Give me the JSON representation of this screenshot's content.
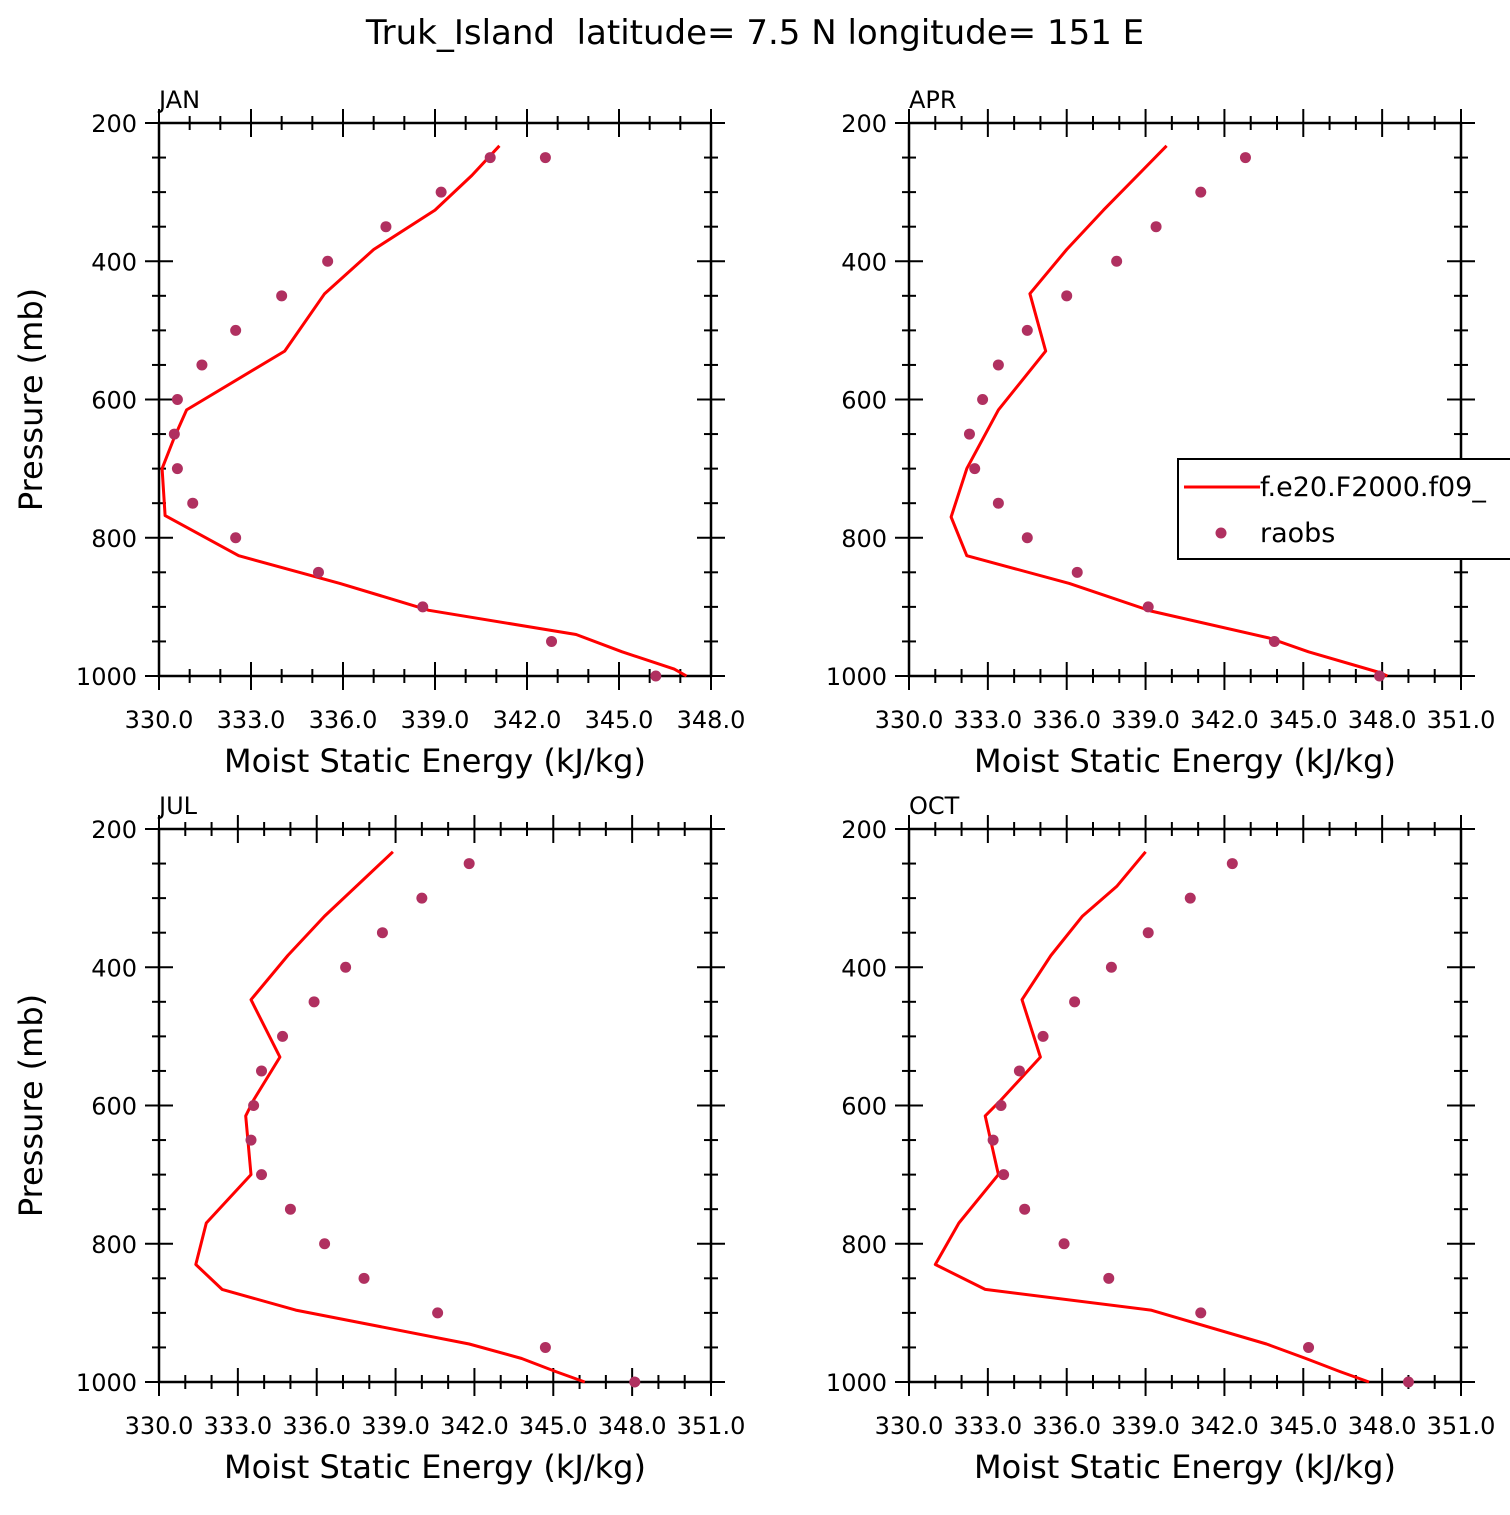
{
  "title": "Truk_Island  latitude= 7.5 N longitude= 151 E",
  "colors": {
    "model": "#ff0000",
    "obs": "#b03060",
    "frame": "#000000"
  },
  "legend": {
    "model_label": "f.e20.F2000.f09_",
    "obs_label": "raobs"
  },
  "chart_data": [
    {
      "type": "line",
      "panel": "JAN",
      "xlabel": "Moist Static Energy (kJ/kg)",
      "ylabel": "Pressure (mb)",
      "xlim": [
        330.0,
        348.0
      ],
      "ylim": [
        1000,
        200
      ],
      "xticks": [
        330.0,
        333.0,
        336.0,
        339.0,
        342.0,
        345.0,
        348.0
      ],
      "xtick_labels": [
        "330.0",
        "333.0",
        "336.0",
        "339.0",
        "342.0",
        "345.0",
        "348.0"
      ],
      "yticks": [
        200,
        400,
        600,
        800,
        1000
      ],
      "ytick_labels": [
        "200",
        "400",
        "600",
        "800",
        "1000"
      ],
      "series": [
        {
          "name": "f.e20.F2000.f09_",
          "style": "line",
          "x": [
            347.2,
            346.8,
            345.1,
            343.6,
            338.8,
            335.9,
            332.6,
            330.2,
            330.1,
            330.5,
            330.9,
            334.1,
            335.4,
            337.0,
            339.0,
            340.2,
            341.1
          ],
          "y": [
            1000,
            990,
            965,
            940,
            905,
            866,
            826,
            768,
            700,
            655,
            615,
            530,
            447,
            383,
            326,
            276,
            233
          ]
        },
        {
          "name": "raobs",
          "style": "points",
          "x": [
            346.2,
            342.8,
            338.6,
            335.2,
            332.5,
            331.1,
            330.6,
            330.5,
            330.6,
            331.4,
            332.5,
            334.0,
            335.5,
            337.4,
            339.2,
            340.8,
            342.6
          ],
          "y": [
            1000,
            950,
            900,
            850,
            800,
            750,
            700,
            650,
            600,
            550,
            500,
            450,
            400,
            350,
            300,
            250,
            250
          ]
        }
      ]
    },
    {
      "type": "line",
      "panel": "APR",
      "xlabel": "Moist Static Energy (kJ/kg)",
      "ylabel": "",
      "xlim": [
        330.0,
        351.0
      ],
      "ylim": [
        1000,
        200
      ],
      "xticks": [
        330.0,
        333.0,
        336.0,
        339.0,
        342.0,
        345.0,
        348.0,
        351.0
      ],
      "xtick_labels": [
        "330.0",
        "333.0",
        "336.0",
        "339.0",
        "342.0",
        "345.0",
        "348.0",
        "351.0"
      ],
      "yticks": [
        200,
        400,
        600,
        800,
        1000
      ],
      "ytick_labels": [
        "200",
        "400",
        "600",
        "800",
        "1000"
      ],
      "series": [
        {
          "name": "f.e20.F2000.f09_",
          "style": "line",
          "x": [
            348.2,
            347.9,
            345.2,
            343.7,
            339.2,
            336.1,
            332.2,
            331.6,
            332.2,
            333.4,
            335.2,
            334.6,
            336.0,
            337.4,
            339.8
          ],
          "y": [
            1000,
            995,
            965,
            945,
            906,
            866,
            826,
            770,
            700,
            615,
            530,
            447,
            383,
            326,
            233
          ]
        },
        {
          "name": "raobs",
          "style": "points",
          "x": [
            347.9,
            343.9,
            339.1,
            336.4,
            334.5,
            333.4,
            332.5,
            332.3,
            332.8,
            333.4,
            334.5,
            336.0,
            337.9,
            339.4,
            341.1,
            342.8
          ],
          "y": [
            1000,
            950,
            900,
            850,
            800,
            750,
            700,
            650,
            600,
            550,
            500,
            450,
            400,
            350,
            300,
            250
          ]
        }
      ]
    },
    {
      "type": "line",
      "panel": "JUL",
      "xlabel": "Moist Static Energy (kJ/kg)",
      "ylabel": "Pressure (mb)",
      "xlim": [
        330.0,
        351.0
      ],
      "ylim": [
        1000,
        200
      ],
      "xticks": [
        330.0,
        333.0,
        336.0,
        339.0,
        342.0,
        345.0,
        348.0,
        351.0
      ],
      "xtick_labels": [
        "330.0",
        "333.0",
        "336.0",
        "339.0",
        "342.0",
        "345.0",
        "348.0",
        "351.0"
      ],
      "yticks": [
        200,
        400,
        600,
        800,
        1000
      ],
      "ytick_labels": [
        "200",
        "400",
        "600",
        "800",
        "1000"
      ],
      "series": [
        {
          "name": "f.e20.F2000.f09_",
          "style": "line",
          "x": [
            346.2,
            345.1,
            343.8,
            341.8,
            335.2,
            332.4,
            331.4,
            331.8,
            333.5,
            333.3,
            333.6,
            334.6,
            333.5,
            334.9,
            336.3,
            337.7,
            338.9
          ],
          "y": [
            1000,
            985,
            966,
            945,
            896,
            866,
            830,
            770,
            700,
            615,
            592,
            530,
            447,
            383,
            326,
            276,
            233
          ]
        },
        {
          "name": "raobs",
          "style": "points",
          "x": [
            348.1,
            344.7,
            340.6,
            337.8,
            336.3,
            335.0,
            333.9,
            333.5,
            333.6,
            333.9,
            334.7,
            335.9,
            337.1,
            338.5,
            340.0,
            341.8
          ],
          "y": [
            1000,
            950,
            900,
            850,
            800,
            750,
            700,
            650,
            600,
            550,
            500,
            450,
            400,
            350,
            300,
            250
          ]
        }
      ]
    },
    {
      "type": "line",
      "panel": "OCT",
      "xlabel": "Moist Static Energy (kJ/kg)",
      "ylabel": "",
      "xlim": [
        330.0,
        351.0
      ],
      "ylim": [
        1000,
        200
      ],
      "xticks": [
        330.0,
        333.0,
        336.0,
        339.0,
        342.0,
        345.0,
        348.0,
        351.0
      ],
      "xtick_labels": [
        "330.0",
        "333.0",
        "336.0",
        "339.0",
        "342.0",
        "345.0",
        "348.0",
        "351.0"
      ],
      "yticks": [
        200,
        400,
        600,
        800,
        1000
      ],
      "ytick_labels": [
        "200",
        "400",
        "600",
        "800",
        "1000"
      ],
      "series": [
        {
          "name": "f.e20.F2000.f09_",
          "style": "line",
          "x": [
            347.5,
            346.4,
            345.1,
            343.6,
            339.2,
            332.9,
            331.0,
            331.9,
            333.4,
            332.9,
            333.5,
            335.0,
            334.3,
            335.4,
            336.6,
            337.9,
            339.0
          ],
          "y": [
            1000,
            985,
            966,
            945,
            896,
            866,
            830,
            770,
            700,
            615,
            592,
            530,
            447,
            383,
            326,
            283,
            233
          ]
        },
        {
          "name": "raobs",
          "style": "points",
          "x": [
            349.0,
            345.2,
            341.1,
            337.6,
            335.9,
            334.4,
            333.6,
            333.2,
            333.5,
            334.2,
            335.1,
            336.3,
            337.7,
            339.1,
            340.7,
            342.3
          ],
          "y": [
            1000,
            950,
            900,
            850,
            800,
            750,
            700,
            650,
            600,
            550,
            500,
            450,
            400,
            350,
            300,
            250
          ]
        }
      ]
    }
  ]
}
